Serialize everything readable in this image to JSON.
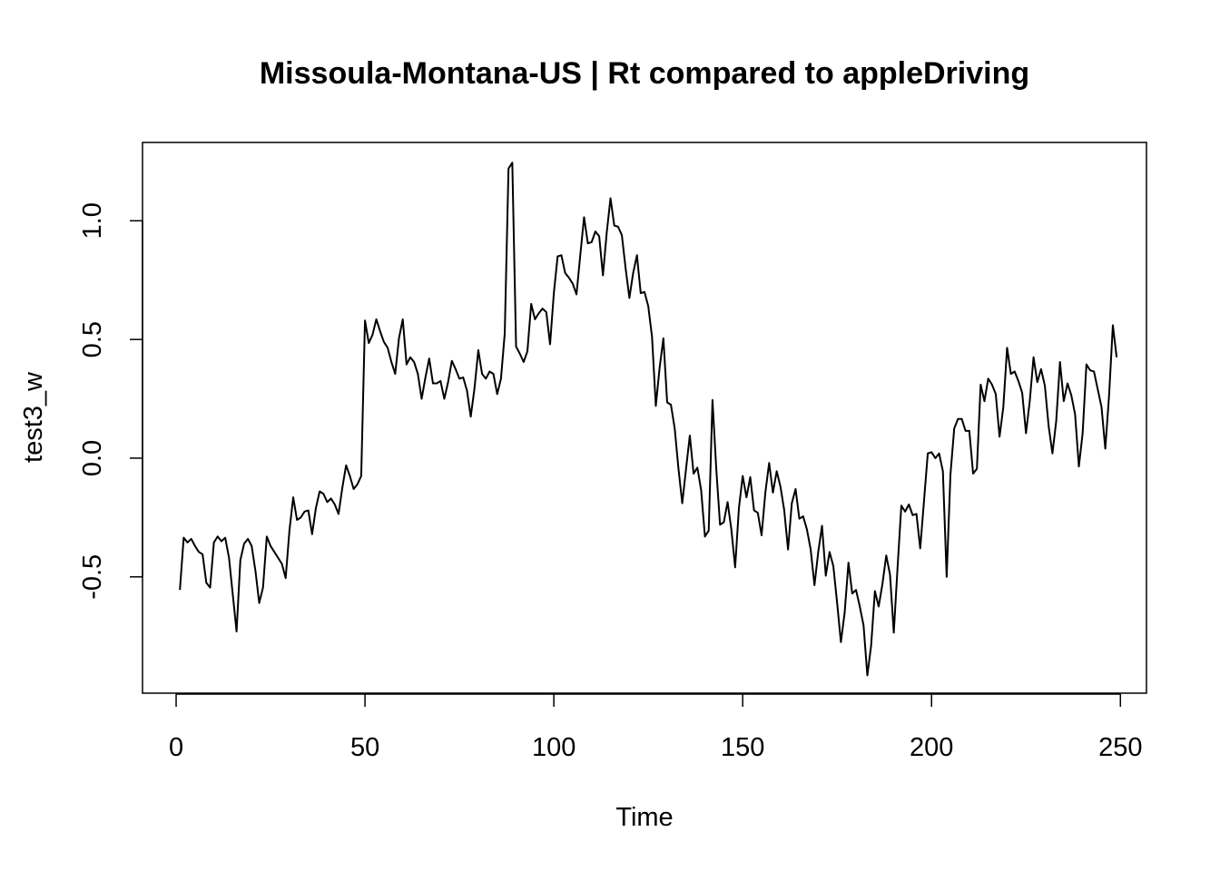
{
  "chart_data": {
    "type": "line",
    "title": "Missoula-Montana-US | Rt compared to appleDriving",
    "xlabel": "Time",
    "ylabel": "test3_w",
    "xlim": [
      -8.9,
      256.9
    ],
    "ylim": [
      -0.99,
      1.33
    ],
    "x_ticks": [
      0,
      50,
      100,
      150,
      200,
      250
    ],
    "y_ticks": [
      -0.5,
      0.0,
      0.5,
      1.0
    ],
    "x_tick_labels": [
      "0",
      "50",
      "100",
      "150",
      "200",
      "250"
    ],
    "y_tick_labels": [
      "-0.5",
      "0.0",
      "0.5",
      "1.0"
    ],
    "grid": false,
    "series": [
      {
        "color": "#000000",
        "x_start": 1,
        "x_step": 1,
        "values": [
          -0.555,
          -0.335,
          -0.355,
          -0.34,
          -0.37,
          -0.395,
          -0.405,
          -0.525,
          -0.545,
          -0.355,
          -0.33,
          -0.35,
          -0.335,
          -0.42,
          -0.575,
          -0.73,
          -0.43,
          -0.36,
          -0.34,
          -0.37,
          -0.475,
          -0.61,
          -0.545,
          -0.33,
          -0.37,
          -0.395,
          -0.42,
          -0.445,
          -0.505,
          -0.305,
          -0.165,
          -0.26,
          -0.25,
          -0.225,
          -0.22,
          -0.32,
          -0.21,
          -0.14,
          -0.15,
          -0.185,
          -0.17,
          -0.195,
          -0.235,
          -0.125,
          -0.03,
          -0.075,
          -0.13,
          -0.11,
          -0.075,
          0.58,
          0.485,
          0.52,
          0.585,
          0.535,
          0.49,
          0.465,
          0.405,
          0.355,
          0.505,
          0.585,
          0.395,
          0.425,
          0.405,
          0.355,
          0.25,
          0.34,
          0.42,
          0.315,
          0.315,
          0.325,
          0.25,
          0.32,
          0.41,
          0.375,
          0.335,
          0.34,
          0.285,
          0.175,
          0.295,
          0.455,
          0.355,
          0.335,
          0.365,
          0.355,
          0.27,
          0.335,
          0.525,
          1.22,
          1.245,
          0.47,
          0.44,
          0.405,
          0.45,
          0.65,
          0.585,
          0.61,
          0.63,
          0.615,
          0.48,
          0.695,
          0.85,
          0.855,
          0.78,
          0.76,
          0.735,
          0.69,
          0.855,
          1.015,
          0.905,
          0.91,
          0.955,
          0.935,
          0.77,
          0.95,
          1.095,
          0.98,
          0.975,
          0.94,
          0.8,
          0.675,
          0.78,
          0.855,
          0.695,
          0.7,
          0.64,
          0.51,
          0.22,
          0.38,
          0.505,
          0.235,
          0.225,
          0.125,
          -0.045,
          -0.19,
          -0.045,
          0.095,
          -0.065,
          -0.04,
          -0.135,
          -0.33,
          -0.305,
          0.245,
          -0.045,
          -0.28,
          -0.27,
          -0.185,
          -0.3,
          -0.46,
          -0.21,
          -0.075,
          -0.165,
          -0.08,
          -0.22,
          -0.23,
          -0.325,
          -0.145,
          -0.02,
          -0.145,
          -0.055,
          -0.12,
          -0.22,
          -0.385,
          -0.19,
          -0.13,
          -0.255,
          -0.245,
          -0.3,
          -0.385,
          -0.535,
          -0.395,
          -0.285,
          -0.495,
          -0.395,
          -0.455,
          -0.61,
          -0.775,
          -0.65,
          -0.44,
          -0.57,
          -0.555,
          -0.625,
          -0.705,
          -0.915,
          -0.79,
          -0.56,
          -0.625,
          -0.53,
          -0.41,
          -0.49,
          -0.735,
          -0.46,
          -0.2,
          -0.225,
          -0.195,
          -0.24,
          -0.235,
          -0.38,
          -0.18,
          0.02,
          0.025,
          0.0,
          0.02,
          -0.055,
          -0.5,
          -0.07,
          0.125,
          0.165,
          0.165,
          0.115,
          0.115,
          -0.065,
          -0.045,
          0.31,
          0.24,
          0.335,
          0.31,
          0.27,
          0.09,
          0.215,
          0.465,
          0.355,
          0.365,
          0.325,
          0.275,
          0.105,
          0.24,
          0.425,
          0.32,
          0.375,
          0.305,
          0.135,
          0.02,
          0.155,
          0.405,
          0.24,
          0.315,
          0.265,
          0.185,
          -0.035,
          0.105,
          0.395,
          0.37,
          0.365,
          0.29,
          0.215,
          0.04,
          0.265,
          0.56,
          0.425
        ]
      }
    ]
  }
}
